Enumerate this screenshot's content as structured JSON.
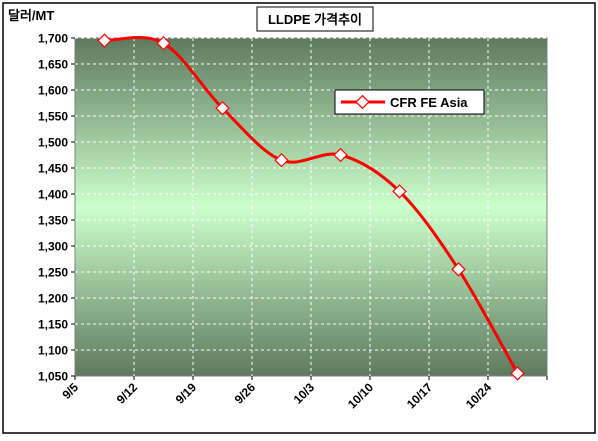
{
  "chart_data": {
    "type": "line",
    "title": "LLDPE 가격추이",
    "ylabel": "달러/MT",
    "xlabel": "",
    "categories": [
      "9/5",
      "9/12",
      "9/19",
      "9/26",
      "10/3",
      "10/10",
      "10/17",
      "10/24"
    ],
    "series": [
      {
        "name": "CFR FE Asia",
        "values": [
          1695,
          1690,
          1565,
          1465,
          1475,
          1405,
          1255,
          1055
        ],
        "color": "#ff0000"
      }
    ],
    "ylim": [
      1050,
      1700
    ],
    "yticks": [
      1050,
      1100,
      1150,
      1200,
      1250,
      1300,
      1350,
      1400,
      1450,
      1500,
      1550,
      1600,
      1650,
      1700
    ],
    "ytick_labels": [
      "1,050",
      "1,100",
      "1,150",
      "1,200",
      "1,250",
      "1,300",
      "1,350",
      "1,400",
      "1,450",
      "1,500",
      "1,550",
      "1,600",
      "1,650",
      "1,700"
    ],
    "grid": true,
    "legend": "top-right",
    "background_colors": {
      "edge": "#5e7a5e",
      "center": "#ccffcc"
    }
  }
}
